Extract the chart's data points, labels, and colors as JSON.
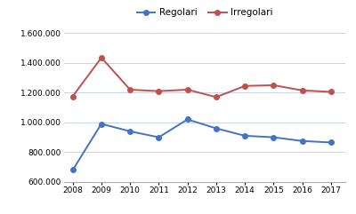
{
  "years": [
    2008,
    2009,
    2010,
    2011,
    2012,
    2013,
    2014,
    2015,
    2016,
    2017
  ],
  "regolari": [
    680000,
    990000,
    940000,
    900000,
    1020000,
    960000,
    910000,
    900000,
    875000,
    865000
  ],
  "irregolari": [
    1175000,
    1435000,
    1220000,
    1210000,
    1220000,
    1170000,
    1245000,
    1250000,
    1215000,
    1205000
  ],
  "regolari_color": "#4472C4",
  "irregolari_color": "#C0504D",
  "ylim_min": 600000,
  "ylim_max": 1650000,
  "yticks": [
    600000,
    800000,
    1000000,
    1200000,
    1400000,
    1600000
  ],
  "ytick_labels": [
    "600.000",
    "800.000",
    "1.000.000",
    "1.200.000",
    "1.400.000",
    "1.600.000"
  ],
  "legend_regolari": "Regolari",
  "legend_irregolari": "Irregolari",
  "background_color": "#ffffff",
  "grid_color": "#c8d4e8",
  "line_width": 1.4,
  "marker": "o",
  "marker_size": 4
}
